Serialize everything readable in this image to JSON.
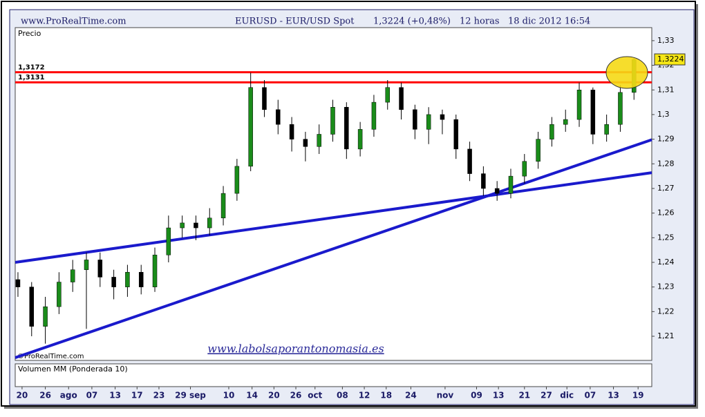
{
  "chart_data": {
    "type": "candlestick",
    "header": {
      "site": "www.ProRealTime.com",
      "symbol": "EURUSD - EUR/USD Spot",
      "quote": "1,3224 (+0,48%)",
      "period": "12 horas",
      "date": "18 dic 2012 16:54"
    },
    "title": "Precio",
    "copyright": "©ProRealTime.com",
    "watermark": "www.labolsaporantonomasia.es",
    "volume_title": "Volumen MM (Ponderada 10)",
    "last_price": {
      "value": 1.3224,
      "label": "1,3224"
    },
    "x": [
      0,
      1,
      2,
      3,
      4,
      5,
      6,
      7,
      8,
      9,
      10,
      11,
      12,
      13,
      14,
      15,
      16,
      17,
      18,
      19,
      20,
      21,
      22,
      23,
      24,
      25,
      26,
      27,
      28,
      29,
      30,
      31,
      32,
      33,
      34,
      35,
      36,
      37,
      38,
      39,
      40,
      41,
      42,
      43,
      44,
      45
    ],
    "open": [
      1.233,
      1.23,
      1.214,
      1.222,
      1.232,
      1.237,
      1.241,
      1.234,
      1.23,
      1.236,
      1.23,
      1.243,
      1.254,
      1.256,
      1.254,
      1.258,
      1.268,
      1.279,
      1.311,
      1.302,
      1.296,
      1.29,
      1.287,
      1.292,
      1.303,
      1.286,
      1.294,
      1.305,
      1.311,
      1.302,
      1.294,
      1.3,
      1.298,
      1.286,
      1.276,
      1.27,
      1.268,
      1.275,
      1.281,
      1.29,
      1.296,
      1.298,
      1.31,
      1.292,
      1.296,
      1.309
    ],
    "high": [
      1.236,
      1.232,
      1.226,
      1.236,
      1.241,
      1.244,
      1.244,
      1.237,
      1.239,
      1.239,
      1.246,
      1.259,
      1.259,
      1.259,
      1.262,
      1.271,
      1.282,
      1.317,
      1.314,
      1.306,
      1.299,
      1.293,
      1.296,
      1.306,
      1.305,
      1.297,
      1.308,
      1.314,
      1.313,
      1.304,
      1.303,
      1.302,
      1.3,
      1.289,
      1.279,
      1.273,
      1.278,
      1.284,
      1.293,
      1.299,
      1.302,
      1.313,
      1.311,
      1.3,
      1.312,
      1.323
    ],
    "low": [
      1.226,
      1.21,
      1.207,
      1.219,
      1.228,
      1.213,
      1.23,
      1.225,
      1.226,
      1.227,
      1.228,
      1.24,
      1.25,
      1.249,
      1.251,
      1.255,
      1.265,
      1.277,
      1.299,
      1.292,
      1.285,
      1.281,
      1.284,
      1.289,
      1.282,
      1.283,
      1.291,
      1.302,
      1.298,
      1.29,
      1.288,
      1.292,
      1.282,
      1.273,
      1.267,
      1.265,
      1.266,
      1.272,
      1.278,
      1.287,
      1.293,
      1.295,
      1.288,
      1.289,
      1.293,
      1.306
    ],
    "close": [
      1.23,
      1.214,
      1.222,
      1.232,
      1.237,
      1.241,
      1.234,
      1.23,
      1.236,
      1.23,
      1.243,
      1.254,
      1.256,
      1.254,
      1.258,
      1.268,
      1.279,
      1.311,
      1.302,
      1.296,
      1.29,
      1.287,
      1.292,
      1.303,
      1.286,
      1.294,
      1.305,
      1.311,
      1.302,
      1.294,
      1.3,
      1.298,
      1.286,
      1.276,
      1.27,
      1.268,
      1.275,
      1.281,
      1.29,
      1.296,
      1.298,
      1.31,
      1.292,
      1.296,
      1.309,
      1.3224
    ],
    "up_color": "#1a8c1a",
    "down_color": "#000000",
    "levels": [
      {
        "value": 1.3172,
        "label": "1,3172",
        "color": "#ff0000"
      },
      {
        "value": 1.3131,
        "label": "1,3131",
        "color": "#ff0000"
      }
    ],
    "trendlines": [
      {
        "x": [
          -0.2,
          46.3
        ],
        "y": [
          1.24,
          1.2764
        ],
        "color": "#1a1acc"
      },
      {
        "x": [
          -0.2,
          46.3
        ],
        "y": [
          1.2013,
          1.2898
        ],
        "color": "#1a1acc"
      }
    ],
    "xlim": [
      -0.2,
      46.3
    ],
    "ylim": [
      1.2002,
      1.3353
    ],
    "yticks": [
      {
        "value": 1.21,
        "label": "1,21"
      },
      {
        "value": 1.22,
        "label": "1,22"
      },
      {
        "value": 1.23,
        "label": "1,23"
      },
      {
        "value": 1.24,
        "label": "1,24"
      },
      {
        "value": 1.25,
        "label": "1,25"
      },
      {
        "value": 1.26,
        "label": "1,26"
      },
      {
        "value": 1.27,
        "label": "1,27"
      },
      {
        "value": 1.28,
        "label": "1,28"
      },
      {
        "value": 1.29,
        "label": "1,29"
      },
      {
        "value": 1.3,
        "label": "1,3"
      },
      {
        "value": 1.31,
        "label": "1,31"
      },
      {
        "value": 1.32,
        "label": "1,32"
      },
      {
        "value": 1.33,
        "label": "1,33"
      }
    ],
    "xticks": [
      {
        "value": 0.3,
        "label": "20"
      },
      {
        "value": 2.0,
        "label": "26"
      },
      {
        "value": 3.7,
        "label": "ago"
      },
      {
        "value": 5.4,
        "label": "07"
      },
      {
        "value": 7.1,
        "label": "13"
      },
      {
        "value": 8.7,
        "label": "17"
      },
      {
        "value": 10.3,
        "label": "23"
      },
      {
        "value": 12.6,
        "label": "29 sep"
      },
      {
        "value": 15.4,
        "label": "10"
      },
      {
        "value": 17.1,
        "label": "14"
      },
      {
        "value": 18.7,
        "label": "20"
      },
      {
        "value": 20.3,
        "label": "26"
      },
      {
        "value": 21.7,
        "label": "oct"
      },
      {
        "value": 23.7,
        "label": "08"
      },
      {
        "value": 25.3,
        "label": "12"
      },
      {
        "value": 26.9,
        "label": "18"
      },
      {
        "value": 28.7,
        "label": "24"
      },
      {
        "value": 31.2,
        "label": "nov"
      },
      {
        "value": 33.5,
        "label": "09"
      },
      {
        "value": 35.1,
        "label": "13"
      },
      {
        "value": 37.0,
        "label": "21"
      },
      {
        "value": 38.6,
        "label": "27"
      },
      {
        "value": 40.1,
        "label": "dic"
      },
      {
        "value": 41.8,
        "label": "07"
      },
      {
        "value": 43.5,
        "label": "13"
      },
      {
        "value": 45.3,
        "label": "19"
      }
    ]
  }
}
